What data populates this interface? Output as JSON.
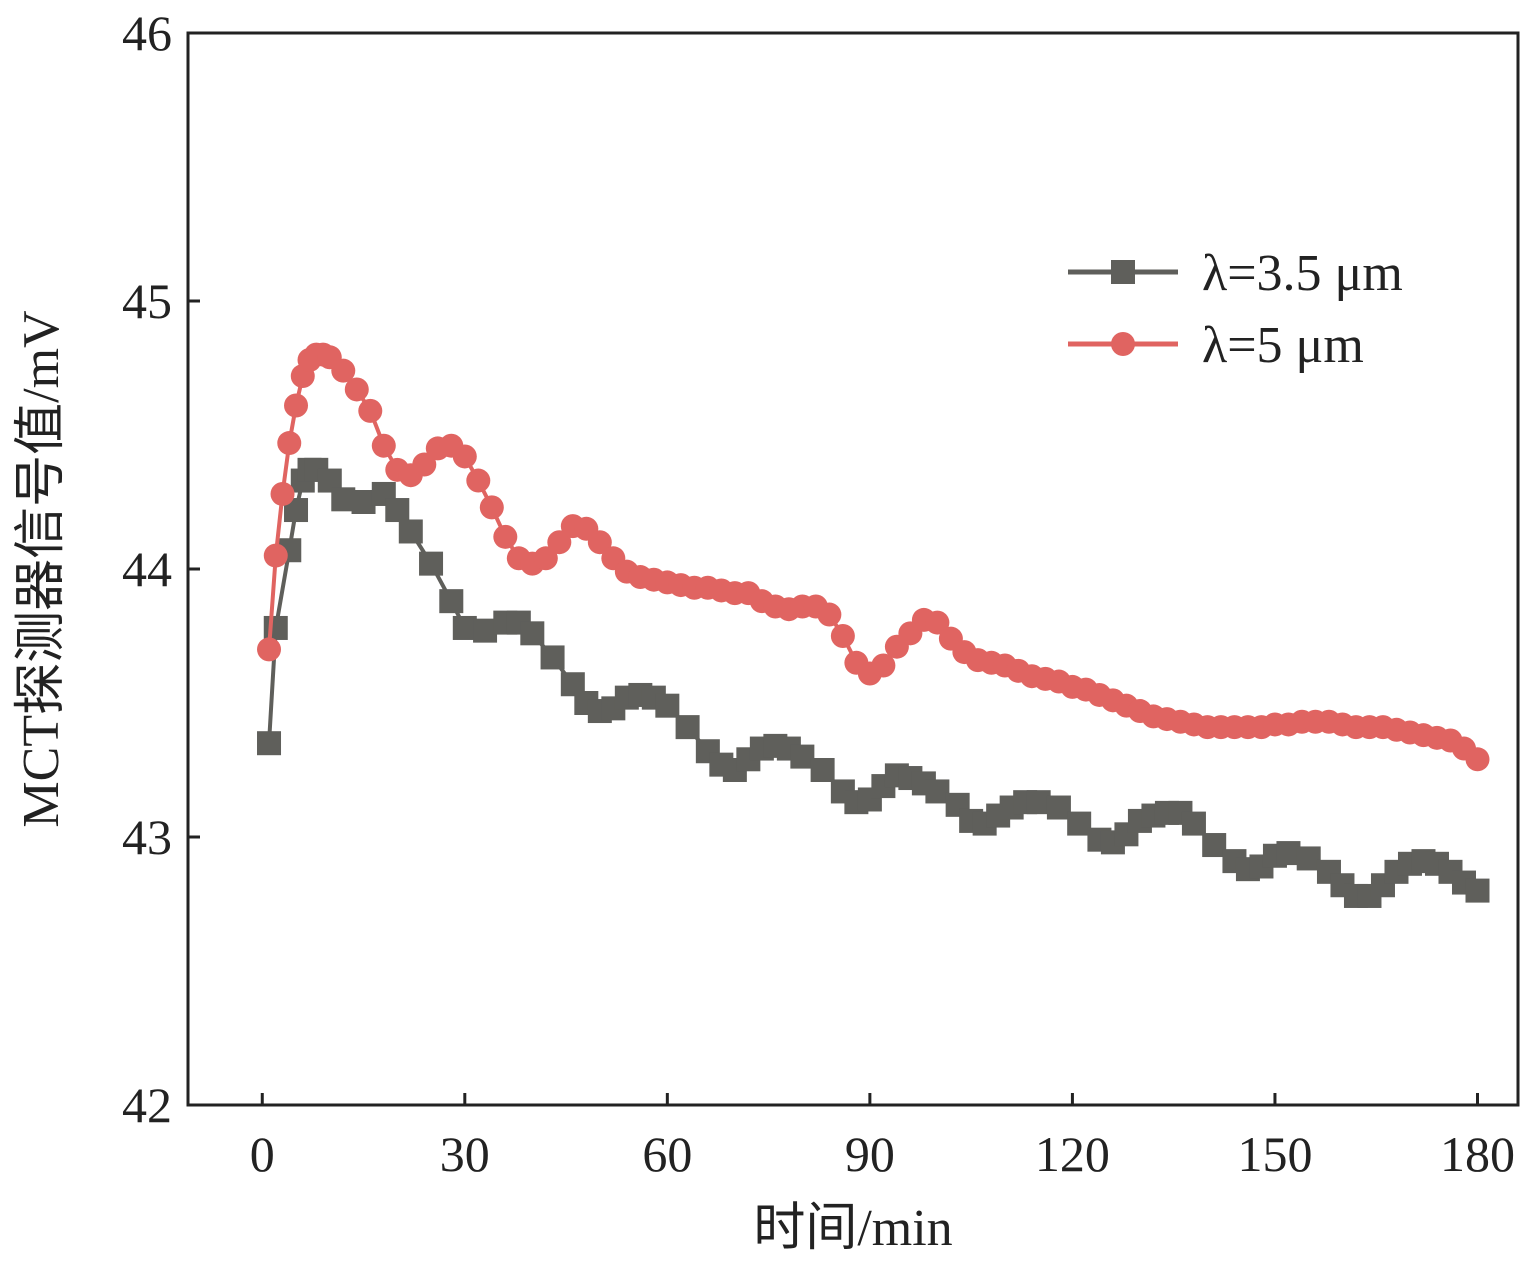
{
  "chart_data": {
    "type": "line",
    "title": "",
    "xlabel": "时间/min",
    "ylabel": "MCT探测器信号值/mV",
    "xlim": [
      -11,
      186
    ],
    "ylim": [
      42,
      46
    ],
    "xticks": [
      0,
      30,
      60,
      90,
      120,
      150,
      180
    ],
    "yticks": [
      42,
      43,
      44,
      45,
      46
    ],
    "grid": false,
    "legend_position": "upper-right",
    "series": [
      {
        "name": "λ=3.5 μm",
        "color": "#5f5f5b",
        "marker": "square",
        "x": [
          1,
          2,
          4,
          5,
          6,
          7,
          8,
          10,
          12,
          15,
          18,
          20,
          22,
          25,
          28,
          30,
          33,
          36,
          38,
          40,
          43,
          46,
          48,
          50,
          52,
          54,
          56,
          58,
          60,
          63,
          66,
          68,
          70,
          72,
          74,
          76,
          78,
          80,
          83,
          86,
          88,
          90,
          92,
          94,
          96,
          98,
          100,
          103,
          105,
          107,
          109,
          111,
          113,
          115,
          118,
          121,
          124,
          126,
          128,
          130,
          132,
          134,
          136,
          138,
          141,
          144,
          146,
          148,
          150,
          152,
          155,
          158,
          160,
          162,
          164,
          166,
          168,
          170,
          172,
          174,
          176,
          178,
          180
        ],
        "y": [
          43.35,
          43.78,
          44.07,
          44.22,
          44.33,
          44.37,
          44.37,
          44.33,
          44.26,
          44.25,
          44.28,
          44.22,
          44.14,
          44.02,
          43.88,
          43.78,
          43.77,
          43.8,
          43.8,
          43.76,
          43.67,
          43.57,
          43.5,
          43.47,
          43.48,
          43.52,
          43.53,
          43.52,
          43.49,
          43.41,
          43.32,
          43.27,
          43.25,
          43.29,
          43.33,
          43.34,
          43.33,
          43.3,
          43.25,
          43.17,
          43.13,
          43.14,
          43.19,
          43.23,
          43.22,
          43.2,
          43.17,
          43.12,
          43.06,
          43.05,
          43.08,
          43.11,
          43.13,
          43.13,
          43.11,
          43.05,
          42.99,
          42.98,
          43.01,
          43.06,
          43.08,
          43.09,
          43.09,
          43.05,
          42.97,
          42.91,
          42.88,
          42.89,
          42.93,
          42.94,
          42.92,
          42.87,
          42.82,
          42.78,
          42.78,
          42.82,
          42.87,
          42.9,
          42.91,
          42.9,
          42.87,
          42.83,
          42.8
        ]
      },
      {
        "name": "λ=5 μm",
        "color": "#e06461",
        "marker": "circle",
        "x": [
          1,
          2,
          3,
          4,
          5,
          6,
          7,
          8,
          9,
          10,
          12,
          14,
          16,
          18,
          20,
          22,
          24,
          26,
          28,
          30,
          32,
          34,
          36,
          38,
          40,
          42,
          44,
          46,
          48,
          50,
          52,
          54,
          56,
          58,
          60,
          62,
          64,
          66,
          68,
          70,
          72,
          74,
          76,
          78,
          80,
          82,
          84,
          86,
          88,
          90,
          92,
          94,
          96,
          98,
          100,
          102,
          104,
          106,
          108,
          110,
          112,
          114,
          116,
          118,
          120,
          122,
          124,
          126,
          128,
          130,
          132,
          134,
          136,
          138,
          140,
          142,
          144,
          146,
          148,
          150,
          152,
          154,
          156,
          158,
          160,
          162,
          164,
          166,
          168,
          170,
          172,
          174,
          176,
          178,
          180
        ],
        "y": [
          43.7,
          44.05,
          44.28,
          44.47,
          44.61,
          44.72,
          44.78,
          44.8,
          44.8,
          44.79,
          44.74,
          44.67,
          44.59,
          44.46,
          44.37,
          44.35,
          44.39,
          44.45,
          44.46,
          44.42,
          44.33,
          44.23,
          44.12,
          44.04,
          44.02,
          44.04,
          44.1,
          44.16,
          44.15,
          44.1,
          44.04,
          43.99,
          43.97,
          43.96,
          43.95,
          43.94,
          43.93,
          43.93,
          43.92,
          43.91,
          43.91,
          43.88,
          43.86,
          43.85,
          43.86,
          43.86,
          43.83,
          43.75,
          43.65,
          43.61,
          43.64,
          43.71,
          43.76,
          43.81,
          43.8,
          43.74,
          43.69,
          43.66,
          43.65,
          43.64,
          43.62,
          43.6,
          43.59,
          43.58,
          43.56,
          43.55,
          43.53,
          43.51,
          43.49,
          43.47,
          43.45,
          43.44,
          43.43,
          43.42,
          43.41,
          43.41,
          43.41,
          43.41,
          43.41,
          43.42,
          43.42,
          43.43,
          43.43,
          43.43,
          43.42,
          43.41,
          43.41,
          43.41,
          43.4,
          43.39,
          43.38,
          43.37,
          43.36,
          43.33,
          43.29
        ]
      }
    ]
  }
}
